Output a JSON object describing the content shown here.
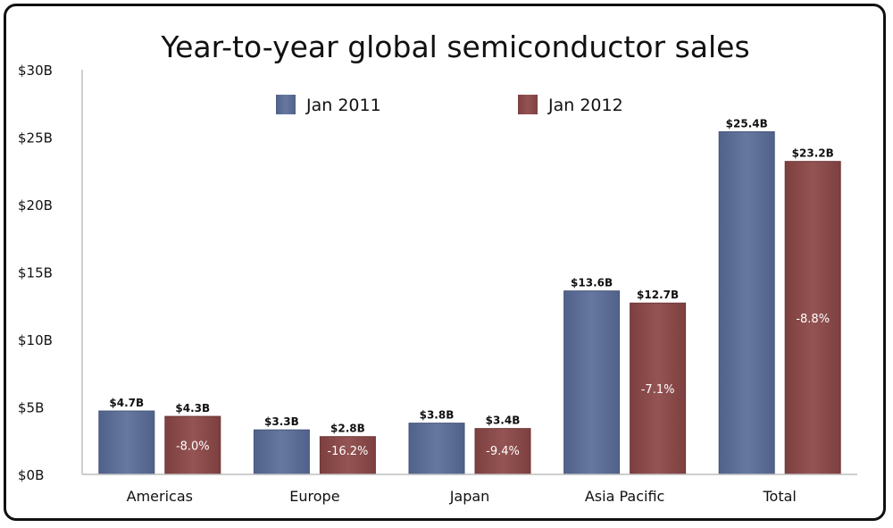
{
  "chart_data": {
    "type": "bar",
    "title": "Year-to-year global semiconductor sales",
    "xlabel": "",
    "ylabel": "",
    "ylim": [
      0,
      30
    ],
    "yticks": [
      "$0B",
      "$5B",
      "$10B",
      "$15B",
      "$20B",
      "$25B",
      "$30B"
    ],
    "grid": false,
    "legend_position": "top",
    "categories": [
      "Americas",
      "Europe",
      "Japan",
      "Asia Pacific",
      "Total"
    ],
    "series": [
      {
        "name": "Jan 2011",
        "color": "#5b6d8f",
        "values": [
          4.7,
          3.3,
          3.8,
          13.6,
          25.4
        ],
        "labels": [
          "$4.7B",
          "$3.3B",
          "$3.8B",
          "$13.6B",
          "$25.4B"
        ]
      },
      {
        "name": "Jan 2012",
        "color": "#8a4a4a",
        "values": [
          4.3,
          2.8,
          3.4,
          12.7,
          23.2
        ],
        "labels": [
          "$4.3B",
          "$2.8B",
          "$3.4B",
          "$12.7B",
          "$23.2B"
        ],
        "change_labels": [
          "-8.0%",
          "-16.2%",
          "-9.4%",
          "-7.1%",
          "-8.8%"
        ]
      }
    ]
  }
}
